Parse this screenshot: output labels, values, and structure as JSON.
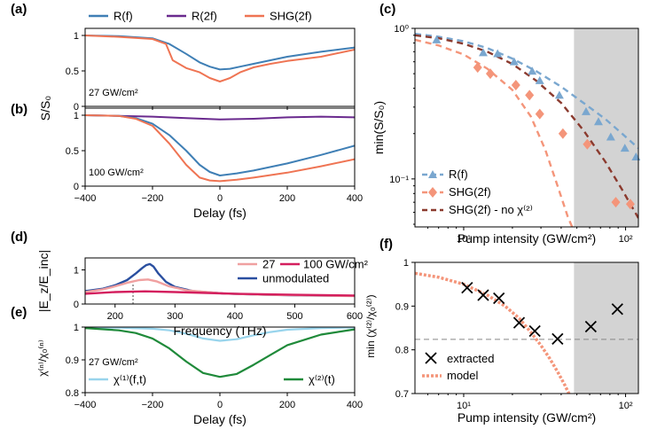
{
  "colors": {
    "blue": "#3f7fb5",
    "purple": "#6a2a8e",
    "orange": "#ef7453",
    "blue_light": "#7aa7cf",
    "salmon": "#f4957a",
    "darkred": "#8b3a2e",
    "pink": "#f0a0a0",
    "magenta": "#d41f5e",
    "navy": "#2a4fa0",
    "skyblue": "#98d4ec",
    "green": "#1f8a3a",
    "gray": "#888888",
    "shade": "#d3d3d3"
  },
  "chart_data": [
    {
      "id": "a",
      "label": "(a)",
      "type": "line",
      "annotation": "27 GW/cm²",
      "xlim": [
        -400,
        400
      ],
      "ylim": [
        0,
        1.1
      ],
      "yticks": [
        "0",
        "0.5",
        "1"
      ],
      "legend": [
        "R(f)",
        "R(2f)",
        "SHG(2f)"
      ],
      "series": [
        {
          "name": "R(f)",
          "color": "blue",
          "x": [
            -400,
            -300,
            -200,
            -150,
            -100,
            -60,
            -30,
            0,
            30,
            60,
            100,
            150,
            200,
            300,
            400
          ],
          "y": [
            1.0,
            0.99,
            0.96,
            0.88,
            0.74,
            0.62,
            0.56,
            0.52,
            0.53,
            0.56,
            0.6,
            0.65,
            0.7,
            0.77,
            0.83
          ]
        },
        {
          "name": "SHG(2f)",
          "color": "orange",
          "x": [
            -400,
            -300,
            -200,
            -160,
            -140,
            -100,
            -60,
            -30,
            0,
            30,
            60,
            100,
            150,
            200,
            300,
            400
          ],
          "y": [
            1.0,
            0.98,
            0.95,
            0.88,
            0.65,
            0.54,
            0.48,
            0.4,
            0.35,
            0.4,
            0.48,
            0.55,
            0.6,
            0.64,
            0.7,
            0.8
          ]
        }
      ]
    },
    {
      "id": "b",
      "label": "(b)",
      "type": "line",
      "annotation": "100 GW/cm²",
      "xlim": [
        -400,
        400
      ],
      "ylim": [
        0,
        1.1
      ],
      "yticks": [
        "0",
        "0.5",
        "1"
      ],
      "xticks": [
        "−400",
        "−200",
        "0",
        "200",
        "400"
      ],
      "xlabel": "Delay (fs)",
      "series": [
        {
          "name": "R(2f)",
          "color": "purple",
          "x": [
            -400,
            -300,
            -200,
            -100,
            0,
            100,
            200,
            300,
            400
          ],
          "y": [
            1.0,
            0.99,
            0.98,
            0.96,
            0.94,
            0.95,
            0.97,
            0.98,
            0.97
          ]
        },
        {
          "name": "R(f)",
          "color": "blue",
          "x": [
            -400,
            -300,
            -250,
            -200,
            -150,
            -100,
            -60,
            -30,
            0,
            50,
            100,
            200,
            300,
            400
          ],
          "y": [
            1.0,
            0.99,
            0.96,
            0.88,
            0.72,
            0.5,
            0.3,
            0.2,
            0.15,
            0.18,
            0.22,
            0.32,
            0.44,
            0.57
          ]
        },
        {
          "name": "SHG(2f)",
          "color": "orange",
          "x": [
            -400,
            -300,
            -250,
            -200,
            -150,
            -100,
            -60,
            -30,
            0,
            50,
            100,
            200,
            300,
            400
          ],
          "y": [
            1.0,
            0.99,
            0.95,
            0.85,
            0.6,
            0.3,
            0.12,
            0.08,
            0.07,
            0.09,
            0.12,
            0.19,
            0.28,
            0.38
          ]
        }
      ]
    },
    {
      "id": "ab_ylabel",
      "type": "text",
      "ylabel": "S/S₀"
    },
    {
      "id": "c",
      "label": "(c)",
      "type": "scatter",
      "xscale": "log",
      "yscale": "log",
      "xlim": [
        5,
        120
      ],
      "ylim": [
        0.048,
        1.0
      ],
      "xlabel": "Pump intensity (GW/cm²)",
      "ylabel": "min(S/S₀)",
      "ytick_labels": [
        "10⁰",
        "10⁻¹"
      ],
      "xtick_labels": [
        "10¹",
        "10²"
      ],
      "shaded_from": 48,
      "legend": [
        "R(f)",
        "SHG(2f)",
        "SHG(2f) - no χ⁽²⁾"
      ],
      "points": [
        {
          "name": "R(f)",
          "color": "blue_light",
          "marker": "triangle",
          "x": [
            6.8,
            13.2,
            16.2,
            20.5,
            26.5,
            29.5,
            39,
            57,
            68,
            81,
            99,
            116
          ],
          "y": [
            0.84,
            0.69,
            0.68,
            0.6,
            0.52,
            0.45,
            0.36,
            0.28,
            0.24,
            0.19,
            0.16,
            0.14
          ]
        },
        {
          "name": "SHG(2f)",
          "color": "salmon",
          "marker": "diamond",
          "x": [
            12.2,
            14.6,
            21,
            25.5,
            29.5,
            41,
            58,
            87,
            107
          ],
          "y": [
            0.55,
            0.5,
            0.42,
            0.36,
            0.27,
            0.2,
            0.17,
            0.07,
            0.068
          ]
        }
      ],
      "curves": [
        {
          "name": "R(f) fit",
          "color": "blue_light",
          "x": [
            5,
            7,
            10,
            14,
            20,
            28,
            40,
            55,
            75,
            95,
            120
          ],
          "y": [
            0.92,
            0.88,
            0.82,
            0.74,
            0.63,
            0.52,
            0.41,
            0.32,
            0.25,
            0.2,
            0.16
          ]
        },
        {
          "name": "SHG(2f) - no χ(2)",
          "color": "darkred",
          "x": [
            5,
            7,
            10,
            14,
            20,
            28,
            40,
            55,
            75,
            95,
            120
          ],
          "y": [
            0.9,
            0.86,
            0.79,
            0.7,
            0.58,
            0.45,
            0.32,
            0.21,
            0.13,
            0.085,
            0.055
          ]
        },
        {
          "name": "SHG(2f) fit",
          "color": "salmon",
          "x": [
            5,
            7,
            10,
            14,
            20,
            26,
            32,
            38,
            44,
            48
          ],
          "y": [
            0.84,
            0.77,
            0.67,
            0.54,
            0.39,
            0.26,
            0.155,
            0.09,
            0.056,
            0.045
          ]
        }
      ]
    },
    {
      "id": "d",
      "label": "(d)",
      "type": "line",
      "xlim": [
        150,
        600
      ],
      "ylim": [
        0,
        1.35
      ],
      "yticks": [
        "0",
        "1"
      ],
      "xticks": [
        "200",
        "300",
        "400",
        "500",
        "600"
      ],
      "xlabel": "Frequency (THz)",
      "ylabel": "|E_z/E_inc|",
      "legend": [
        "27",
        "100 GW/cm²",
        "unmodulated"
      ],
      "marker_line_x": 230,
      "series": [
        {
          "name": "unmodulated",
          "color": "navy",
          "x": [
            150,
            180,
            200,
            220,
            235,
            245,
            252,
            258,
            264,
            272,
            285,
            300,
            330,
            380,
            450,
            520,
            600
          ],
          "y": [
            0.38,
            0.45,
            0.55,
            0.7,
            0.9,
            1.05,
            1.14,
            1.17,
            1.1,
            0.9,
            0.65,
            0.5,
            0.38,
            0.31,
            0.27,
            0.25,
            0.24
          ]
        },
        {
          "name": "27",
          "color": "pink",
          "x": [
            150,
            180,
            200,
            220,
            240,
            255,
            270,
            290,
            320,
            380,
            450,
            600
          ],
          "y": [
            0.35,
            0.43,
            0.52,
            0.62,
            0.7,
            0.72,
            0.66,
            0.52,
            0.4,
            0.31,
            0.27,
            0.23
          ]
        },
        {
          "name": "100 GW/cm²",
          "color": "magenta",
          "x": [
            150,
            200,
            250,
            300,
            400,
            500,
            600
          ],
          "y": [
            0.3,
            0.35,
            0.37,
            0.35,
            0.3,
            0.27,
            0.25
          ]
        }
      ]
    },
    {
      "id": "e",
      "label": "(e)",
      "type": "line",
      "annotation": "27 GW/cm²",
      "xlim": [
        -400,
        400
      ],
      "ylim": [
        0.8,
        1.0
      ],
      "yticks": [
        "0.8",
        "0.9",
        "1"
      ],
      "xticks": [
        "−400",
        "−200",
        "0",
        "200",
        "400"
      ],
      "xlabel": "Delay (fs)",
      "ylabel": "χ⁽ⁿ⁾/χ₀⁽ⁿ⁾",
      "legend": [
        "χ⁽¹⁾(f,t)",
        "χ⁽²⁾(t)"
      ],
      "series": [
        {
          "name": "χ(1)(f,t)",
          "color": "skyblue",
          "x": [
            -400,
            -300,
            -200,
            -150,
            -100,
            -50,
            0,
            50,
            100,
            150,
            200,
            300,
            400
          ],
          "y": [
            1.0,
            0.998,
            0.995,
            0.99,
            0.98,
            0.965,
            0.958,
            0.963,
            0.975,
            0.985,
            0.992,
            0.997,
            0.999
          ]
        },
        {
          "name": "χ(2)(t)",
          "color": "green",
          "x": [
            -400,
            -300,
            -250,
            -200,
            -150,
            -100,
            -50,
            0,
            50,
            100,
            150,
            200,
            300,
            400
          ],
          "y": [
            0.997,
            0.99,
            0.982,
            0.965,
            0.935,
            0.895,
            0.86,
            0.848,
            0.857,
            0.885,
            0.915,
            0.945,
            0.977,
            0.993
          ]
        }
      ]
    },
    {
      "id": "f",
      "label": "(f)",
      "type": "scatter",
      "xscale": "log",
      "xlim": [
        5,
        120
      ],
      "ylim": [
        0.7,
        1.0
      ],
      "yticks": [
        "0.7",
        "0.8",
        "0.9",
        "1"
      ],
      "xtick_labels": [
        "10¹",
        "10²"
      ],
      "xlabel": "Pump intensity (GW/cm²)",
      "ylabel": "min (χ⁽²⁾/χ₀⁽²⁾)",
      "shaded_from": 48,
      "hline": 0.824,
      "legend": [
        "extracted",
        "model"
      ],
      "points": [
        {
          "name": "extracted",
          "color": "black",
          "marker": "x",
          "x": [
            10.5,
            13.2,
            16.5,
            22,
            27.5,
            38,
            61,
            89
          ],
          "y": [
            0.942,
            0.925,
            0.918,
            0.862,
            0.843,
            0.825,
            0.853,
            0.893
          ]
        }
      ],
      "curves": [
        {
          "name": "model",
          "color": "salmon",
          "x": [
            5,
            7,
            10,
            14,
            18,
            22,
            26,
            30,
            34,
            38,
            42,
            46
          ],
          "y": [
            0.975,
            0.966,
            0.95,
            0.925,
            0.9,
            0.872,
            0.84,
            0.81,
            0.78,
            0.75,
            0.72,
            0.69
          ]
        }
      ]
    }
  ]
}
